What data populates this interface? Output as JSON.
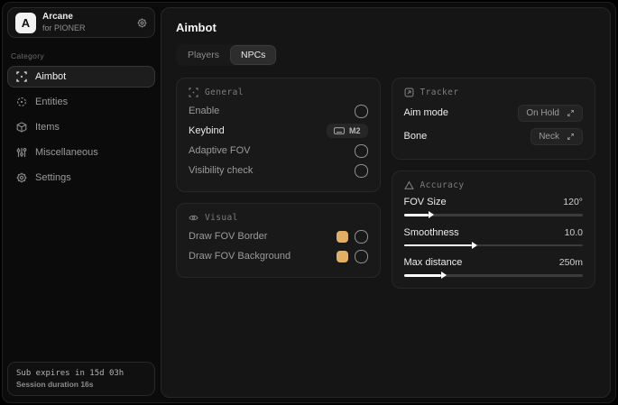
{
  "app": {
    "logo_letter": "A",
    "name": "Arcane",
    "subtitle": "for PIONER",
    "gear_icon": "gear-icon"
  },
  "sidebar": {
    "category_label": "Category",
    "items": [
      {
        "label": "Aimbot",
        "icon": "crosshair-icon",
        "active": true
      },
      {
        "label": "Entities",
        "icon": "entities-icon",
        "active": false
      },
      {
        "label": "Items",
        "icon": "box-icon",
        "active": false
      },
      {
        "label": "Miscellaneous",
        "icon": "sliders-icon",
        "active": false
      },
      {
        "label": "Settings",
        "icon": "gear-icon",
        "active": false
      }
    ],
    "footer": {
      "sub_expiry": "Sub expires in 15d 03h",
      "session_duration": "Session duration 16s"
    }
  },
  "main": {
    "title": "Aimbot",
    "tabs": [
      {
        "label": "Players",
        "active": false
      },
      {
        "label": "NPCs",
        "active": true
      }
    ],
    "panels": {
      "general": {
        "title": "General",
        "icon": "crosshair-icon",
        "rows": [
          {
            "label": "Enable",
            "control": "checkbox",
            "checked": false
          },
          {
            "label": "Keybind",
            "control": "keybind",
            "value": "M2",
            "value_icon": "keyboard-icon"
          },
          {
            "label": "Adaptive FOV",
            "control": "checkbox",
            "checked": false
          },
          {
            "label": "Visibility check",
            "control": "checkbox",
            "checked": false
          }
        ]
      },
      "visual": {
        "title": "Visual",
        "icon": "eye-icon",
        "rows": [
          {
            "label": "Draw FOV Border",
            "control": "color-checkbox",
            "color": "#e2af63",
            "checked": false
          },
          {
            "label": "Draw FOV Background",
            "control": "color-checkbox",
            "color": "#e2af63",
            "checked": false
          }
        ]
      },
      "tracker": {
        "title": "Tracker",
        "icon": "frame-icon",
        "rows": [
          {
            "label": "Aim mode",
            "value": "On Hold",
            "value_icon": "expand-icon"
          },
          {
            "label": "Bone",
            "value": "Neck",
            "value_icon": "expand-icon"
          }
        ]
      },
      "accuracy": {
        "title": "Accuracy",
        "icon": "triangle-icon",
        "sliders": [
          {
            "label": "FOV Size",
            "value": "120°",
            "percent": 14
          },
          {
            "label": "Smoothness",
            "value": "10.0",
            "percent": 38
          },
          {
            "label": "Max distance",
            "value": "250m",
            "percent": 21
          }
        ]
      }
    }
  },
  "colors": {
    "accent_gold": "#e2af63"
  }
}
